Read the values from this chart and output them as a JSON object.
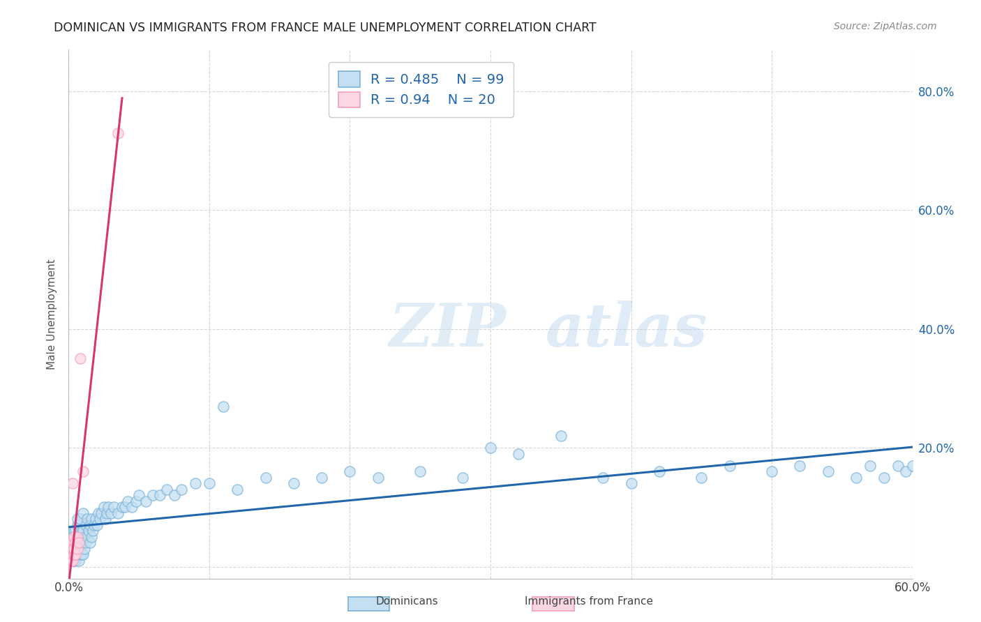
{
  "title": "DOMINICAN VS IMMIGRANTS FROM FRANCE MALE UNEMPLOYMENT CORRELATION CHART",
  "source": "Source: ZipAtlas.com",
  "ylabel": "Male Unemployment",
  "xlim": [
    0.0,
    0.6
  ],
  "ylim": [
    -0.02,
    0.87
  ],
  "blue_color": "#7ab3d9",
  "blue_fill": "#c5dff2",
  "pink_color": "#f4a0b8",
  "pink_fill": "#fbd6e3",
  "trend_blue": "#2166ac",
  "trend_pink": "#d6366a",
  "legend_blue_label": "Dominicans",
  "legend_pink_label": "Immigrants from France",
  "r_blue": 0.485,
  "n_blue": 99,
  "r_pink": 0.94,
  "n_pink": 20,
  "blue_scatter_x": [
    0.001,
    0.002,
    0.002,
    0.003,
    0.003,
    0.003,
    0.004,
    0.004,
    0.004,
    0.004,
    0.005,
    0.005,
    0.005,
    0.005,
    0.006,
    0.006,
    0.006,
    0.006,
    0.006,
    0.007,
    0.007,
    0.007,
    0.007,
    0.008,
    0.008,
    0.008,
    0.008,
    0.009,
    0.009,
    0.009,
    0.01,
    0.01,
    0.01,
    0.01,
    0.011,
    0.011,
    0.012,
    0.012,
    0.013,
    0.013,
    0.014,
    0.015,
    0.015,
    0.016,
    0.016,
    0.017,
    0.018,
    0.019,
    0.02,
    0.021,
    0.022,
    0.023,
    0.025,
    0.026,
    0.027,
    0.028,
    0.03,
    0.032,
    0.035,
    0.038,
    0.04,
    0.042,
    0.045,
    0.048,
    0.05,
    0.055,
    0.06,
    0.065,
    0.07,
    0.075,
    0.08,
    0.09,
    0.1,
    0.11,
    0.12,
    0.14,
    0.16,
    0.18,
    0.2,
    0.22,
    0.25,
    0.28,
    0.3,
    0.32,
    0.35,
    0.38,
    0.4,
    0.42,
    0.45,
    0.47,
    0.5,
    0.52,
    0.54,
    0.56,
    0.57,
    0.58,
    0.59,
    0.595,
    0.6
  ],
  "blue_scatter_y": [
    0.03,
    0.02,
    0.04,
    0.01,
    0.03,
    0.05,
    0.01,
    0.02,
    0.04,
    0.06,
    0.01,
    0.02,
    0.04,
    0.06,
    0.02,
    0.03,
    0.05,
    0.07,
    0.08,
    0.01,
    0.03,
    0.05,
    0.07,
    0.02,
    0.04,
    0.06,
    0.08,
    0.02,
    0.04,
    0.06,
    0.02,
    0.04,
    0.06,
    0.09,
    0.03,
    0.05,
    0.04,
    0.07,
    0.05,
    0.08,
    0.06,
    0.04,
    0.07,
    0.05,
    0.08,
    0.06,
    0.07,
    0.08,
    0.07,
    0.09,
    0.08,
    0.09,
    0.1,
    0.08,
    0.09,
    0.1,
    0.09,
    0.1,
    0.09,
    0.1,
    0.1,
    0.11,
    0.1,
    0.11,
    0.12,
    0.11,
    0.12,
    0.12,
    0.13,
    0.12,
    0.13,
    0.14,
    0.14,
    0.27,
    0.13,
    0.15,
    0.14,
    0.15,
    0.16,
    0.15,
    0.16,
    0.15,
    0.2,
    0.19,
    0.22,
    0.15,
    0.14,
    0.16,
    0.15,
    0.17,
    0.16,
    0.17,
    0.16,
    0.15,
    0.17,
    0.15,
    0.17,
    0.16,
    0.17
  ],
  "pink_scatter_x": [
    0.001,
    0.001,
    0.002,
    0.002,
    0.002,
    0.003,
    0.003,
    0.003,
    0.003,
    0.004,
    0.004,
    0.004,
    0.005,
    0.005,
    0.006,
    0.006,
    0.007,
    0.008,
    0.01,
    0.035
  ],
  "pink_scatter_y": [
    0.01,
    0.03,
    0.01,
    0.02,
    0.04,
    0.01,
    0.02,
    0.03,
    0.14,
    0.02,
    0.03,
    0.05,
    0.02,
    0.04,
    0.03,
    0.05,
    0.04,
    0.35,
    0.16,
    0.73
  ],
  "watermark_zip": "ZIP",
  "watermark_atlas": "atlas",
  "background_color": "#ffffff",
  "grid_color": "#cccccc"
}
